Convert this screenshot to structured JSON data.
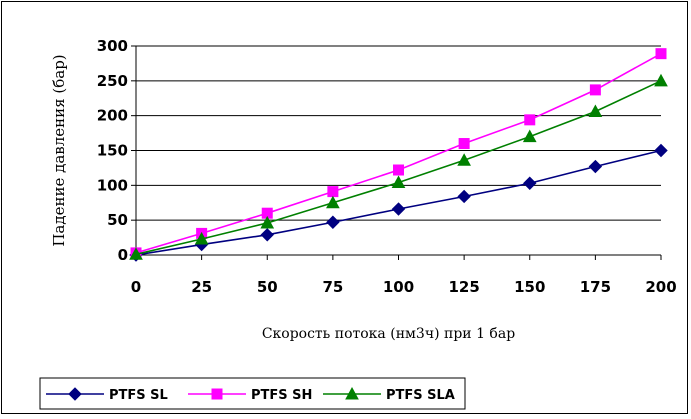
{
  "chart_data": {
    "type": "line",
    "x": [
      0,
      25,
      50,
      75,
      100,
      125,
      150,
      175,
      200
    ],
    "xlabel": "Скорость потока (нм3ч) при 1 бар",
    "ylabel": "Падение давления (бар)",
    "xlim": [
      0,
      200
    ],
    "ylim": [
      0,
      300
    ],
    "xticks": [
      "0",
      "25",
      "50",
      "75",
      "100",
      "125",
      "150",
      "175",
      "200"
    ],
    "yticks": [
      "0",
      "50",
      "100",
      "150",
      "200",
      "250",
      "300"
    ],
    "grid": "horizontal",
    "legend_position": "bottom-left",
    "series": [
      {
        "name": "PTFS SL",
        "color": "#000080",
        "marker": "diamond",
        "values": [
          0,
          15,
          29,
          47,
          66,
          84,
          103,
          127,
          150
        ]
      },
      {
        "name": "PTFS SH",
        "color": "#ff00ff",
        "marker": "square",
        "values": [
          3,
          31,
          60,
          91,
          122,
          160,
          194,
          237,
          289
        ]
      },
      {
        "name": "PTFS SLA",
        "color": "#008000",
        "marker": "triangle",
        "values": [
          1,
          23,
          46,
          75,
          104,
          136,
          170,
          206,
          250
        ]
      }
    ]
  }
}
